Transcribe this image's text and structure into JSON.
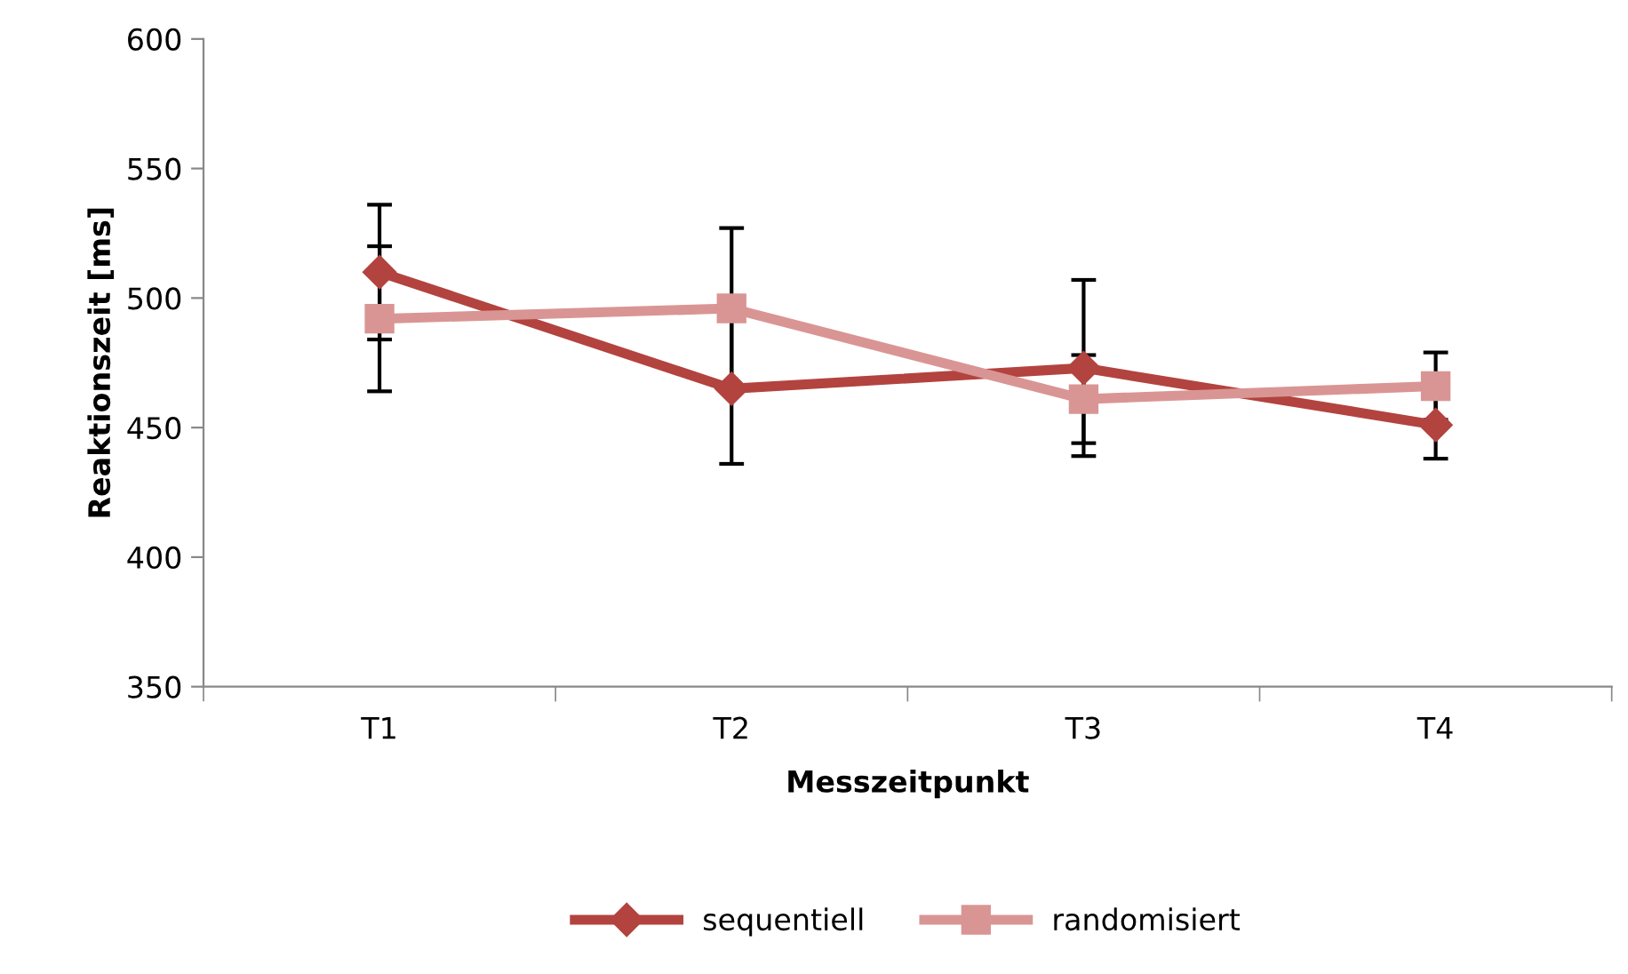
{
  "chart_data": {
    "type": "line",
    "xlabel": "Messzeitpunkt",
    "ylabel": "Reaktionszeit [ms]",
    "categories": [
      "T1",
      "T2",
      "T3",
      "T4"
    ],
    "series": [
      {
        "name": "sequentiell",
        "color": "#b3433f",
        "marker": "diamond",
        "values": [
          510,
          465,
          473,
          451
        ],
        "errors": [
          26,
          29,
          34,
          13
        ]
      },
      {
        "name": "randomisiert",
        "color": "#d99594",
        "marker": "square",
        "values": [
          492,
          496,
          461,
          466
        ],
        "errors": [
          28,
          31,
          17,
          13
        ]
      }
    ],
    "ylim": [
      350,
      600
    ],
    "yticks": [
      350,
      400,
      450,
      500,
      550,
      600
    ],
    "grid": false,
    "legend": "bottom",
    "line_style": "solid"
  }
}
